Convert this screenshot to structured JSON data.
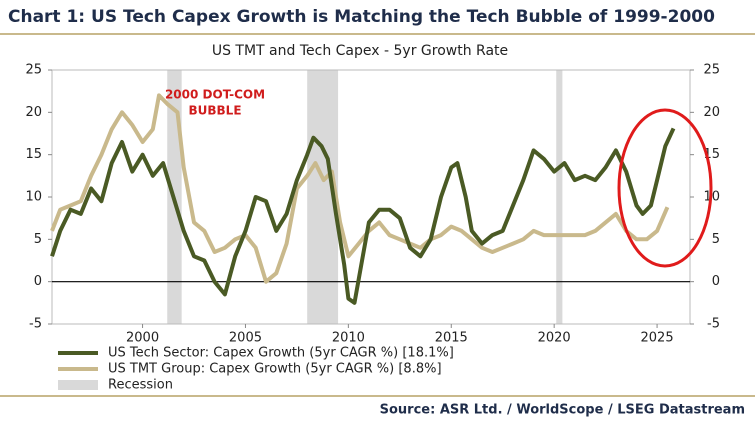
{
  "chart_data": {
    "type": "line",
    "header": "Chart 1: US Tech Capex Growth is Matching the Tech Bubble of 1999-2000",
    "title": "US TMT and Tech Capex - 5yr Growth Rate",
    "source": "Source: ASR Ltd. / WorldScope / LSEG Datastream",
    "annotation": [
      "2000 DOT-COM",
      "BUBBLE"
    ],
    "xlim": [
      1995.6,
      2026.6
    ],
    "xticks": [
      2000,
      2005,
      2010,
      2015,
      2020,
      2025
    ],
    "ylim": [
      -5,
      25
    ],
    "yticks": [
      -5,
      0,
      5,
      10,
      15,
      20,
      25
    ],
    "y2lim": [
      -5,
      25
    ],
    "y2ticks": [
      -5,
      0,
      5,
      10,
      15,
      20,
      25
    ],
    "zero_line": true,
    "recession_name": "Recession",
    "recession_color": "#d9d9d9",
    "recessions": [
      [
        2001.2,
        2001.9
      ],
      [
        2008.0,
        2009.5
      ],
      [
        2020.1,
        2020.4
      ]
    ],
    "series": [
      {
        "name": "US Tech Sector: Capex Growth (5yr CAGR %) [18.1%]",
        "color": "#4a5a24",
        "x": [
          1995.6,
          1996,
          1996.5,
          1997,
          1997.5,
          1998,
          1998.5,
          1999,
          1999.5,
          2000,
          2000.5,
          2001,
          2001.5,
          2002,
          2002.5,
          2003,
          2003.5,
          2004,
          2004.5,
          2005,
          2005.5,
          2006,
          2006.5,
          2007,
          2007.5,
          2008,
          2008.3,
          2008.7,
          2009,
          2009.4,
          2009.8,
          2010,
          2010.3,
          2010.7,
          2011,
          2011.5,
          2012,
          2012.5,
          2013,
          2013.5,
          2014,
          2014.5,
          2015,
          2015.3,
          2015.7,
          2016,
          2016.5,
          2017,
          2017.5,
          2018,
          2018.5,
          2019,
          2019.5,
          2020,
          2020.5,
          2021,
          2021.5,
          2022,
          2022.5,
          2023,
          2023.5,
          2024,
          2024.3,
          2024.7,
          2025,
          2025.4,
          2025.8
        ],
        "values": [
          3,
          6,
          8.5,
          8,
          11,
          9.5,
          14,
          16.5,
          13,
          15,
          12.5,
          14,
          10,
          6,
          3,
          2.5,
          0,
          -1.5,
          3,
          6,
          10,
          9.5,
          6,
          8,
          12,
          15,
          17,
          16,
          14.5,
          8,
          2,
          -2,
          -2.5,
          3,
          7,
          8.5,
          8.5,
          7.5,
          4,
          3,
          5,
          10,
          13.5,
          14,
          10,
          6,
          4.5,
          5.5,
          6,
          9,
          12,
          15.5,
          14.5,
          13,
          14,
          12,
          12.5,
          12,
          13.5,
          15.5,
          13,
          9,
          8,
          9,
          12,
          16,
          18.1
        ]
      },
      {
        "name": "US TMT Group: Capex Growth (5yr CAGR %) [8.8%]",
        "color": "#c9b98c",
        "x": [
          1995.6,
          1996,
          1996.5,
          1997,
          1997.5,
          1998,
          1998.5,
          1999,
          1999.5,
          2000,
          2000.5,
          2000.8,
          2001.2,
          2001.7,
          2002,
          2002.5,
          2003,
          2003.5,
          2004,
          2004.5,
          2005,
          2005.5,
          2006,
          2006.5,
          2007,
          2007.5,
          2008,
          2008.4,
          2008.8,
          2009.2,
          2009.6,
          2010,
          2010.5,
          2011,
          2011.5,
          2012,
          2012.5,
          2013,
          2013.5,
          2014,
          2014.5,
          2015,
          2015.5,
          2016,
          2016.5,
          2017,
          2017.5,
          2018,
          2018.5,
          2019,
          2019.5,
          2020,
          2020.5,
          2021,
          2021.5,
          2022,
          2022.5,
          2023,
          2023.5,
          2024,
          2024.5,
          2025,
          2025.5
        ],
        "values": [
          6,
          8.5,
          9,
          9.5,
          12.5,
          15,
          18,
          20,
          18.5,
          16.5,
          18,
          22,
          21,
          20,
          13.5,
          7,
          6,
          3.5,
          4,
          5,
          5.5,
          4,
          0,
          1,
          4.5,
          11,
          12.5,
          14,
          12,
          13,
          7,
          3,
          4.5,
          6,
          7,
          5.5,
          5,
          4.5,
          4,
          5,
          5.5,
          6.5,
          6,
          5,
          4,
          3.5,
          4,
          4.5,
          5,
          6,
          5.5,
          5.5,
          5.5,
          5.5,
          5.5,
          6,
          7,
          8,
          6,
          5,
          5,
          6,
          8.8
        ]
      }
    ]
  }
}
